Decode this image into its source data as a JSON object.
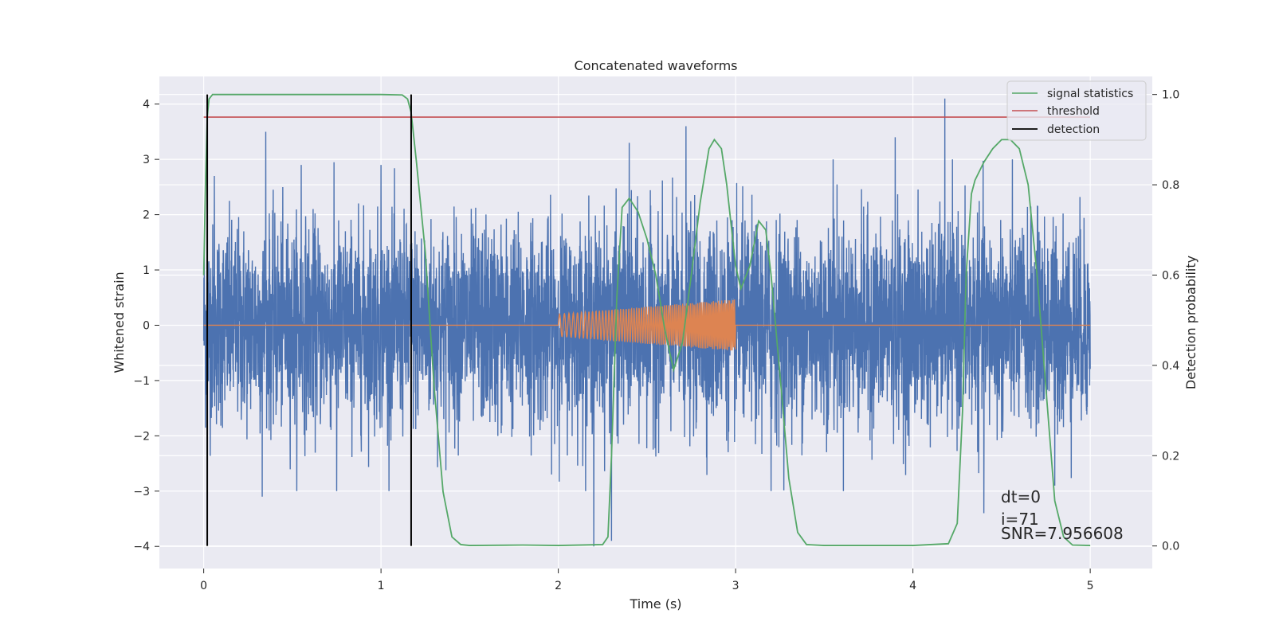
{
  "chart_data": {
    "type": "line",
    "title": "Concatenated waveforms",
    "xlabel": "Time (s)",
    "ylabel": "Whitened strain",
    "y2label": "Detection probability",
    "xlim": [
      -0.25,
      5.35
    ],
    "ylim": [
      -4.4,
      4.5
    ],
    "y2lim": [
      -0.05,
      1.04
    ],
    "xticks": [
      0,
      1,
      2,
      3,
      4,
      5
    ],
    "yticks": [
      -4,
      -3,
      -2,
      -1,
      0,
      1,
      2,
      3,
      4
    ],
    "y2ticks": [
      0.0,
      0.2,
      0.4,
      0.6,
      0.8,
      1.0
    ],
    "grid": true,
    "legend_position": "top-right",
    "colors": {
      "noise": "#4c72b0",
      "injection": "#dd8452",
      "signal": "#55a868",
      "threshold": "#c44e52",
      "detection": "#000000",
      "background": "#eaeaf2",
      "grid": "#ffffff"
    },
    "series": [
      {
        "name": "",
        "axis": "left",
        "kind": "noise",
        "x_range": [
          0,
          5
        ],
        "amplitude_sigma": 0.9,
        "peaks": [
          [
            0.06,
            2.7
          ],
          [
            0.35,
            3.5
          ],
          [
            0.55,
            2.9
          ],
          [
            1.0,
            2.9
          ],
          [
            1.17,
            3.1
          ],
          [
            2.4,
            3.3
          ],
          [
            2.72,
            3.6
          ],
          [
            3.2,
            3.2
          ],
          [
            3.55,
            3.0
          ],
          [
            3.9,
            3.4
          ],
          [
            4.18,
            4.1
          ],
          [
            0.33,
            -3.1
          ],
          [
            0.75,
            -3.0
          ],
          [
            2.2,
            -4.0
          ],
          [
            2.3,
            -3.9
          ],
          [
            3.2,
            -3.0
          ],
          [
            4.4,
            -3.4
          ],
          [
            4.8,
            -2.9
          ]
        ]
      },
      {
        "name": "",
        "axis": "left",
        "kind": "chirp",
        "x_range": [
          0,
          5
        ],
        "chirp_start": 2.0,
        "chirp_end": 3.0,
        "amp_start": 0.2,
        "amp_end": 0.47
      },
      {
        "name": "signal statistics",
        "axis": "right",
        "x": [
          0.0,
          0.01,
          0.02,
          0.03,
          0.05,
          0.08,
          0.15,
          1.0,
          1.12,
          1.15,
          1.17,
          1.2,
          1.25,
          1.3,
          1.35,
          1.4,
          1.45,
          1.5,
          1.8,
          2.0,
          2.25,
          2.28,
          2.3,
          2.33,
          2.36,
          2.4,
          2.45,
          2.5,
          2.55,
          2.6,
          2.65,
          2.7,
          2.75,
          2.8,
          2.85,
          2.88,
          2.92,
          2.95,
          3.0,
          3.03,
          3.08,
          3.13,
          3.17,
          3.2,
          3.25,
          3.3,
          3.35,
          3.4,
          3.5,
          3.7,
          4.0,
          4.2,
          4.25,
          4.28,
          4.3,
          4.33,
          4.35,
          4.4,
          4.45,
          4.5,
          4.55,
          4.6,
          4.65,
          4.7,
          4.75,
          4.8,
          4.85,
          4.9,
          5.0
        ],
        "y": [
          0.6,
          0.8,
          0.95,
          0.99,
          1.0,
          1.0,
          1.0,
          1.0,
          0.999,
          0.99,
          0.96,
          0.85,
          0.65,
          0.35,
          0.12,
          0.02,
          0.003,
          0.001,
          0.002,
          0.001,
          0.003,
          0.02,
          0.2,
          0.55,
          0.75,
          0.77,
          0.74,
          0.68,
          0.6,
          0.48,
          0.39,
          0.45,
          0.6,
          0.76,
          0.88,
          0.9,
          0.88,
          0.8,
          0.62,
          0.57,
          0.62,
          0.72,
          0.7,
          0.6,
          0.38,
          0.15,
          0.03,
          0.003,
          0.001,
          0.001,
          0.001,
          0.005,
          0.05,
          0.3,
          0.6,
          0.78,
          0.81,
          0.85,
          0.88,
          0.9,
          0.9,
          0.88,
          0.8,
          0.6,
          0.35,
          0.1,
          0.02,
          0.002,
          0.001
        ]
      },
      {
        "name": "threshold",
        "axis": "right",
        "x": [
          0,
          5
        ],
        "y": [
          0.95,
          0.95
        ]
      },
      {
        "name": "detection",
        "axis": "right",
        "kind": "vlines",
        "x": [
          0.02,
          1.17
        ],
        "y_range": [
          0.0,
          1.0
        ]
      }
    ],
    "annotations": [
      "dt=0",
      "i=71",
      "SNR=7.956608"
    ]
  }
}
